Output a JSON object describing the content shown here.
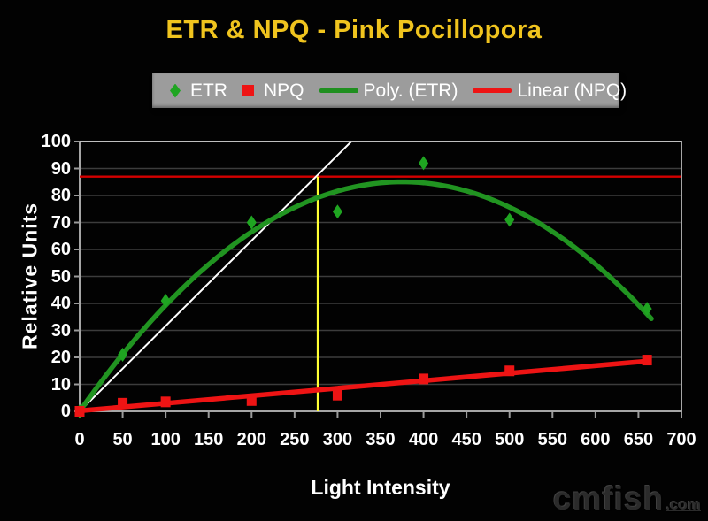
{
  "title": "ETR & NPQ - Pink Pocillopora",
  "legend": {
    "items": [
      {
        "label": "ETR",
        "marker": "diamond",
        "color": "#1fa521"
      },
      {
        "label": "NPQ",
        "marker": "square",
        "color": "#ee1414"
      },
      {
        "label": "Poly. (ETR)",
        "marker": "green-line",
        "color": "#1f8f1f"
      },
      {
        "label": "Linear (NPQ)",
        "marker": "red-line",
        "color": "#ee1414"
      }
    ]
  },
  "watermark": {
    "main": "cmfish",
    "suffix": ".com"
  },
  "colors": {
    "background": "#000000",
    "title": "#f0c41e",
    "legend_bg": "#9c9c9c",
    "axis_text": "#ffffff"
  },
  "chart_data": {
    "type": "scatter",
    "title": "ETR & NPQ - Pink Pocillopora",
    "xlabel": "Light Intensity",
    "ylabel": "Relative Units",
    "xlim": [
      0,
      700
    ],
    "ylim": [
      0,
      100
    ],
    "x_ticks": [
      0,
      50,
      100,
      150,
      200,
      250,
      300,
      350,
      400,
      450,
      500,
      550,
      600,
      650,
      700
    ],
    "y_ticks": [
      0,
      10,
      20,
      30,
      40,
      50,
      60,
      70,
      80,
      90,
      100
    ],
    "grid": "horizontal",
    "legend_position": "top",
    "colors": {
      "grid": "#3c3c3c",
      "border": "#a6a6a6"
    },
    "series": [
      {
        "name": "ETR",
        "marker": "diamond",
        "color": "#1fa521",
        "points": [
          [
            0,
            0
          ],
          [
            50,
            21
          ],
          [
            100,
            41
          ],
          [
            200,
            70
          ],
          [
            300,
            74
          ],
          [
            400,
            92
          ],
          [
            500,
            71
          ],
          [
            660,
            38
          ]
        ]
      },
      {
        "name": "NPQ",
        "marker": "square",
        "color": "#ee1414",
        "points": [
          [
            0,
            0
          ],
          [
            50,
            3
          ],
          [
            100,
            3.5
          ],
          [
            200,
            4
          ],
          [
            300,
            6
          ],
          [
            400,
            12
          ],
          [
            500,
            15
          ],
          [
            660,
            19
          ]
        ]
      }
    ],
    "trendlines": [
      {
        "name": "Poly. (ETR)",
        "type": "quadratic",
        "color": "#219421",
        "a": -0.000604,
        "b": 0.4533,
        "c": 0,
        "x_range": [
          0,
          665
        ],
        "peak": [
          375,
          85
        ]
      },
      {
        "name": "Linear (NPQ)",
        "type": "linear",
        "color": "#ee1414",
        "slope": 0.0279,
        "intercept": 0.2,
        "x_range": [
          0,
          662
        ]
      }
    ],
    "reference_lines": [
      {
        "name": "etr-max",
        "orientation": "horizontal",
        "y": 87,
        "color": "#d40000"
      },
      {
        "name": "alpha",
        "orientation": "diagonal",
        "from": [
          0,
          0
        ],
        "to": [
          316,
          100
        ],
        "color": "#ffffff"
      },
      {
        "name": "ek",
        "orientation": "vertical",
        "x": 277,
        "y_range": [
          0,
          87
        ],
        "color": "#ffff33"
      }
    ]
  }
}
